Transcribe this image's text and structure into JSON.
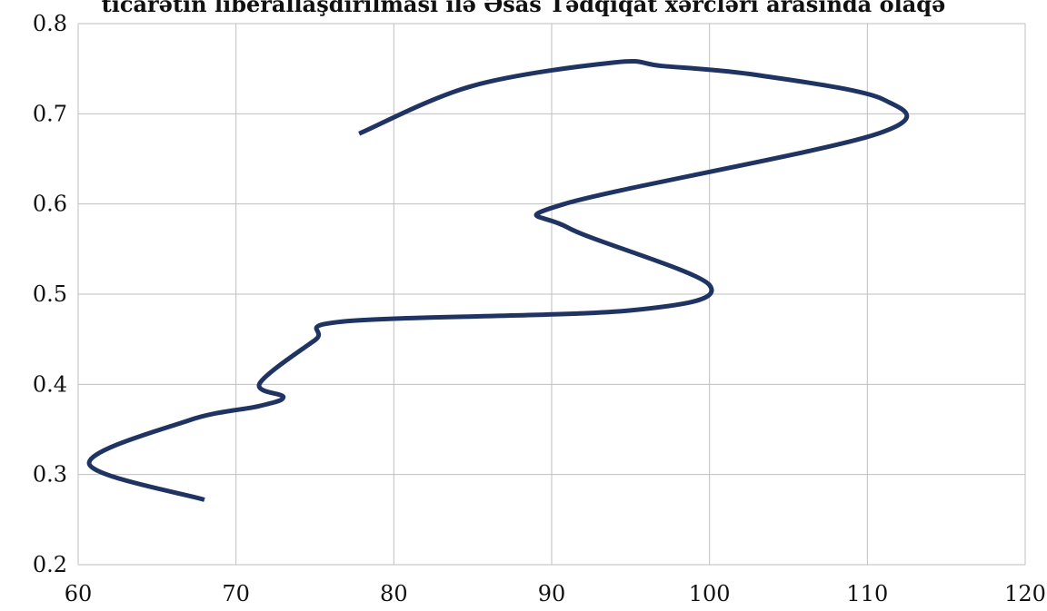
{
  "chart_data": {
    "type": "line",
    "title": "ticarətin liberallaşdırılması ilə Əsas Tədqiqat xərcləri arasında olaqə",
    "xlim": [
      60,
      120
    ],
    "ylim": [
      0.2,
      0.8
    ],
    "x_ticks": [
      "60",
      "70",
      "80",
      "90",
      "100",
      "110",
      "120"
    ],
    "y_ticks": [
      "0.2",
      "0.3",
      "0.4",
      "0.5",
      "0.6",
      "0.7",
      "0.8"
    ],
    "grid": true,
    "series_color": "#1f3462",
    "series": [
      {
        "x": [
          68,
          60.7,
          67,
          71.5,
          73,
          71.5,
          75,
          77,
          95,
          100,
          91,
          90.8,
          110.5,
          111,
          103,
          97,
          94,
          85,
          77.8
        ],
        "y": [
          0.272,
          0.312,
          0.36,
          0.376,
          0.386,
          0.401,
          0.449,
          0.47,
          0.482,
          0.51,
          0.574,
          0.6,
          0.677,
          0.716,
          0.743,
          0.753,
          0.757,
          0.731,
          0.678
        ]
      }
    ]
  }
}
